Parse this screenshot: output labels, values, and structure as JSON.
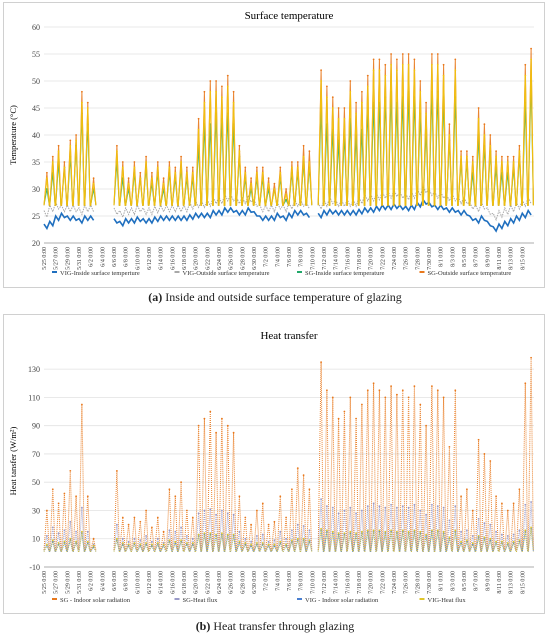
{
  "captions": {
    "a_label": "(a)",
    "a_text": "Inside and outside surface temperature of glazing",
    "b_label": "(b)",
    "b_text": "Heat transfer through glazing"
  },
  "chart_data": [
    {
      "type": "line",
      "title": "Surface temperature",
      "xlabel": "",
      "ylabel": "Temperature (°C)",
      "ylim": [
        20,
        60
      ],
      "yticks": [
        20,
        25,
        30,
        35,
        40,
        45,
        50,
        55,
        60
      ],
      "grid": true,
      "legend_position": "bottom",
      "x_ticks": [
        "5/25 0:00",
        "5/27 0:00",
        "5/29 0:00",
        "5/31 0:00",
        "6/2 0:00",
        "6/4 0:00",
        "6/6 0:00",
        "6/8 0:00",
        "6/10 0:00",
        "6/12 0:00",
        "6/14 0:00",
        "6/16 0:00",
        "6/18 0:00",
        "6/20 0:00",
        "6/22 0:00",
        "6/24 0:00",
        "6/26 0:00",
        "6/28 0:00",
        "6/30 0:00",
        "7/2 0:00",
        "7/4 0:00",
        "7/6 0:00",
        "7/8 0:00",
        "7/10 0:00",
        "7/12 0:00",
        "7/14 0:00",
        "7/16 0:00",
        "7/18 0:00",
        "7/20 0:00",
        "7/22 0:00",
        "7/24 0:00",
        "7/26 0:00",
        "7/28 0:00",
        "7/30 0:00",
        "8/1 0:00",
        "8/3 0:00",
        "8/5 0:00",
        "8/7 0:00",
        "8/9 0:00",
        "8/11 0:00",
        "8/13 0:00",
        "8/15 0:00"
      ],
      "x": [
        "5/25",
        "5/26",
        "5/27",
        "5/28",
        "5/29",
        "5/30",
        "5/31",
        "6/1",
        "6/2",
        "6/6",
        "6/7",
        "6/8",
        "6/9",
        "6/10",
        "6/11",
        "6/12",
        "6/13",
        "6/14",
        "6/15",
        "6/16",
        "6/17",
        "6/18",
        "6/19",
        "6/20",
        "6/21",
        "6/22",
        "6/23",
        "6/24",
        "6/25",
        "6/26",
        "6/27",
        "6/28",
        "6/29",
        "6/30",
        "7/1",
        "7/2",
        "7/3",
        "7/4",
        "7/5",
        "7/6",
        "7/7",
        "7/8",
        "7/9",
        "7/11",
        "7/12",
        "7/13",
        "7/14",
        "7/15",
        "7/16",
        "7/17",
        "7/18",
        "7/19",
        "7/20",
        "7/21",
        "7/22",
        "7/23",
        "7/24",
        "7/25",
        "7/26",
        "7/27",
        "7/28",
        "7/29",
        "7/30",
        "7/31",
        "8/1",
        "8/2",
        "8/3",
        "8/4",
        "8/5",
        "8/6",
        "8/7",
        "8/8",
        "8/9",
        "8/10",
        "8/11",
        "8/12",
        "8/13",
        "8/14",
        "8/15",
        "8/16"
      ],
      "series": [
        {
          "name": "VIG-Inside surface temperture",
          "color": "#1f6fbf",
          "kind": "base",
          "values": [
            23.5,
            24,
            25,
            25.5,
            25,
            25,
            24.5,
            25,
            25,
            24.5,
            24,
            24.5,
            24.5,
            24.8,
            24.5,
            24.5,
            24.8,
            25,
            25,
            25,
            25,
            25,
            25.2,
            25.5,
            25.5,
            25.5,
            26,
            26,
            26.5,
            26.5,
            26,
            26,
            26.5,
            25.8,
            25,
            25,
            25,
            25.5,
            25,
            25.5,
            26,
            26,
            25.5,
            25.5,
            26,
            26.2,
            26,
            26,
            26,
            26,
            26.2,
            26.5,
            26.5,
            26.8,
            27,
            27,
            27.2,
            27,
            26.8,
            27,
            27.5,
            28,
            27.5,
            27,
            27,
            26.5,
            26.5,
            26,
            26,
            25,
            24.5,
            25,
            24,
            23,
            23.5,
            24,
            24.5,
            25,
            25.5,
            26
          ]
        },
        {
          "name": "VIG-Outside surface temperature",
          "color": "#a8a8a8",
          "kind": "base",
          "values": [
            26,
            27,
            27.5,
            27,
            27,
            27,
            26.5,
            27,
            27,
            26.5,
            26,
            26.5,
            26.5,
            27,
            26.5,
            26.5,
            26.8,
            27,
            27,
            27,
            27,
            27,
            27.5,
            27.8,
            27.8,
            28,
            28.5,
            28.5,
            29,
            29,
            28.5,
            28.5,
            28.8,
            28,
            27,
            27,
            27,
            27.5,
            27,
            27.5,
            28,
            28,
            27.5,
            27.5,
            28,
            28.5,
            28,
            28,
            28,
            28,
            28.5,
            29,
            29,
            29.2,
            29.5,
            29.5,
            29.8,
            29.5,
            29.2,
            29.5,
            30,
            30.5,
            30,
            29.5,
            29.5,
            29,
            29,
            28.5,
            28.5,
            27.5,
            27,
            27.5,
            26.5,
            25.5,
            26,
            26.5,
            27,
            27.5,
            28,
            28.5
          ]
        },
        {
          "name": "SG-Inside surface temperature",
          "color": "#21a86a",
          "kind": "peak",
          "values": [
            30,
            33,
            35,
            34,
            36,
            38,
            44,
            42,
            30,
            35,
            32,
            30,
            33,
            32,
            34,
            31,
            33,
            30,
            33,
            32,
            34,
            32,
            32,
            38,
            42,
            42,
            44,
            43,
            44,
            42,
            36,
            32,
            30,
            32,
            32,
            30,
            30,
            32,
            28,
            33,
            33,
            35,
            34,
            45,
            42,
            41,
            39,
            40,
            43,
            40,
            41,
            45,
            46,
            46,
            47,
            48,
            46,
            47,
            48,
            47,
            44,
            41,
            48,
            48,
            47,
            39,
            47,
            35,
            35,
            33,
            40,
            38,
            37,
            34,
            33,
            33,
            34,
            36,
            46,
            50
          ]
        },
        {
          "name": "SG-Outside surface temperature",
          "color": "#e8781c",
          "kind": "peak",
          "values": [
            33,
            36,
            38,
            35,
            39,
            40,
            48,
            46,
            32,
            38,
            35,
            32,
            35,
            33,
            36,
            33,
            35,
            32,
            35,
            34,
            36,
            34,
            34,
            43,
            48,
            50,
            50,
            49,
            51,
            48,
            38,
            34,
            32,
            34,
            34,
            32,
            31,
            34,
            30,
            35,
            35,
            38,
            37,
            52,
            49,
            47,
            45,
            45,
            50,
            46,
            48,
            51,
            54,
            54,
            53,
            55,
            54,
            55,
            55,
            54,
            50,
            46,
            55,
            55,
            53,
            42,
            54,
            37,
            37,
            36,
            45,
            42,
            40,
            37,
            36,
            36,
            36,
            38,
            53,
            56
          ]
        },
        {
          "name": "SG-Outside surface temperature",
          "color": "#f2c40c",
          "kind": "fill",
          "values": [
            32,
            35,
            37,
            34,
            38,
            39,
            46,
            45,
            31,
            37,
            34,
            31,
            34,
            32,
            35,
            32,
            34,
            31,
            34,
            33,
            35,
            33,
            33,
            41,
            46,
            48,
            48,
            47,
            49,
            46,
            37,
            33,
            31,
            33,
            33,
            31,
            30,
            33,
            29,
            34,
            34,
            36,
            35,
            50,
            47,
            45,
            43,
            43,
            48,
            44,
            46,
            49,
            52,
            52,
            51,
            53,
            52,
            53,
            53,
            52,
            48,
            44,
            53,
            53,
            51,
            40,
            52,
            36,
            36,
            35,
            43,
            40,
            38,
            36,
            35,
            35,
            35,
            37,
            51,
            54
          ]
        }
      ],
      "legend": [
        "VIG-Inside surface temperture",
        "VIG-Outside surface temperature",
        "SG-Inside surface temperature",
        "SG-Outside surface temperature"
      ]
    },
    {
      "type": "scatter",
      "title": "Heat transfer",
      "xlabel": "",
      "ylabel": "Heat tansfer (W/m²)",
      "ylim": [
        -10,
        140
      ],
      "yticks": [
        -10,
        10,
        30,
        50,
        70,
        90,
        110,
        130
      ],
      "grid": true,
      "legend_position": "bottom",
      "x_ticks": [
        "5/25 0:00",
        "5/27 0:00",
        "5/29 0:00",
        "5/31 0:00",
        "6/2 0:00",
        "6/4 0:00",
        "6/6 0:00",
        "6/8 0:00",
        "6/10 0:00",
        "6/12 0:00",
        "6/14 0:00",
        "6/16 0:00",
        "6/18 0:00",
        "6/20 0:00",
        "6/22 0:00",
        "6/24 0:00",
        "6/26 0:00",
        "6/28 0:00",
        "6/30 0:00",
        "7/2 0:00",
        "7/4 0:00",
        "7/6 0:00",
        "7/8 0:00",
        "7/10 0:00",
        "7/12 0:00",
        "7/14 0:00",
        "7/16 0:00",
        "7/18 0:00",
        "7/20 0:00",
        "7/22 0:00",
        "7/24 0:00",
        "7/26 0:00",
        "7/28 0:00",
        "7/30 0:00",
        "8/1 0:00",
        "8/3 0:00",
        "8/5 0:00",
        "8/7 0:00",
        "8/9 0:00",
        "8/11 0:00",
        "8/13 0:00",
        "8/15 0:00"
      ],
      "x": [
        "5/25",
        "5/26",
        "5/27",
        "5/28",
        "5/29",
        "5/30",
        "5/31",
        "6/1",
        "6/2",
        "6/6",
        "6/7",
        "6/8",
        "6/9",
        "6/10",
        "6/11",
        "6/12",
        "6/13",
        "6/14",
        "6/15",
        "6/16",
        "6/17",
        "6/18",
        "6/19",
        "6/20",
        "6/21",
        "6/22",
        "6/23",
        "6/24",
        "6/25",
        "6/26",
        "6/27",
        "6/28",
        "6/29",
        "6/30",
        "7/1",
        "7/2",
        "7/3",
        "7/4",
        "7/5",
        "7/6",
        "7/7",
        "7/8",
        "7/9",
        "7/11",
        "7/12",
        "7/13",
        "7/14",
        "7/15",
        "7/16",
        "7/17",
        "7/18",
        "7/19",
        "7/20",
        "7/21",
        "7/22",
        "7/23",
        "7/24",
        "7/25",
        "7/26",
        "7/27",
        "7/28",
        "7/29",
        "7/30",
        "7/31",
        "8/1",
        "8/2",
        "8/3",
        "8/4",
        "8/5",
        "8/6",
        "8/7",
        "8/8",
        "8/9",
        "8/10",
        "8/11",
        "8/12",
        "8/13",
        "8/14",
        "8/15",
        "8/16"
      ],
      "series": [
        {
          "name": "SG - Indoor solar radiation",
          "color": "#e8781c",
          "kind": "peak",
          "values": [
            30,
            45,
            35,
            42,
            58,
            40,
            105,
            40,
            10,
            58,
            25,
            20,
            25,
            22,
            30,
            18,
            25,
            15,
            45,
            40,
            50,
            30,
            25,
            90,
            95,
            100,
            85,
            95,
            90,
            85,
            40,
            25,
            20,
            30,
            35,
            20,
            22,
            40,
            25,
            45,
            60,
            55,
            45,
            135,
            115,
            110,
            95,
            100,
            110,
            95,
            105,
            115,
            120,
            115,
            110,
            118,
            112,
            115,
            110,
            118,
            105,
            90,
            118,
            115,
            110,
            75,
            115,
            40,
            45,
            30,
            80,
            70,
            65,
            40,
            35,
            30,
            35,
            45,
            120,
            138
          ]
        },
        {
          "name": "SG-Heat flux",
          "color": "#9a9ac8",
          "kind": "peak",
          "values": [
            12,
            18,
            14,
            16,
            22,
            15,
            32,
            15,
            6,
            20,
            10,
            8,
            10,
            9,
            12,
            8,
            10,
            7,
            16,
            15,
            18,
            12,
            10,
            28,
            30,
            31,
            27,
            30,
            28,
            27,
            15,
            10,
            8,
            12,
            13,
            8,
            9,
            15,
            10,
            16,
            20,
            19,
            16,
            38,
            33,
            32,
            28,
            30,
            32,
            28,
            30,
            33,
            35,
            33,
            32,
            34,
            32,
            33,
            32,
            34,
            30,
            27,
            34,
            33,
            32,
            23,
            33,
            15,
            16,
            12,
            24,
            21,
            20,
            15,
            13,
            12,
            13,
            16,
            34,
            36
          ]
        },
        {
          "name": "VIG - Indoor solar radiation",
          "color": "#4a7fd0",
          "kind": "peak",
          "values": [
            5,
            8,
            6,
            7,
            9,
            7,
            14,
            7,
            4,
            9,
            6,
            5,
            6,
            5,
            6,
            5,
            6,
            5,
            8,
            7,
            8,
            6,
            6,
            12,
            13,
            13,
            12,
            13,
            12,
            12,
            7,
            6,
            5,
            6,
            6,
            5,
            5,
            7,
            5,
            8,
            9,
            9,
            8,
            16,
            15,
            14,
            13,
            13,
            14,
            13,
            14,
            15,
            15,
            15,
            14,
            15,
            14,
            15,
            14,
            15,
            14,
            12,
            15,
            15,
            14,
            10,
            15,
            7,
            8,
            6,
            11,
            10,
            9,
            7,
            7,
            6,
            7,
            8,
            15,
            17
          ]
        },
        {
          "name": "VIG-Heat flux",
          "color": "#e0c62a",
          "kind": "peak",
          "values": [
            6,
            9,
            7,
            8,
            10,
            8,
            15,
            8,
            5,
            10,
            7,
            6,
            7,
            6,
            7,
            6,
            7,
            6,
            9,
            8,
            9,
            7,
            7,
            13,
            14,
            14,
            13,
            14,
            13,
            13,
            8,
            7,
            6,
            7,
            7,
            6,
            6,
            8,
            6,
            9,
            10,
            10,
            9,
            17,
            16,
            15,
            14,
            14,
            15,
            14,
            15,
            16,
            16,
            16,
            15,
            16,
            15,
            16,
            15,
            16,
            15,
            13,
            16,
            16,
            15,
            11,
            16,
            8,
            9,
            7,
            12,
            11,
            10,
            8,
            8,
            7,
            8,
            9,
            16,
            18
          ]
        }
      ],
      "legend": [
        "SG - Indoor solar radiation",
        "SG-Heat flux",
        "VIG - Indoor solar radiation",
        "VIG-Heat flux"
      ]
    }
  ]
}
